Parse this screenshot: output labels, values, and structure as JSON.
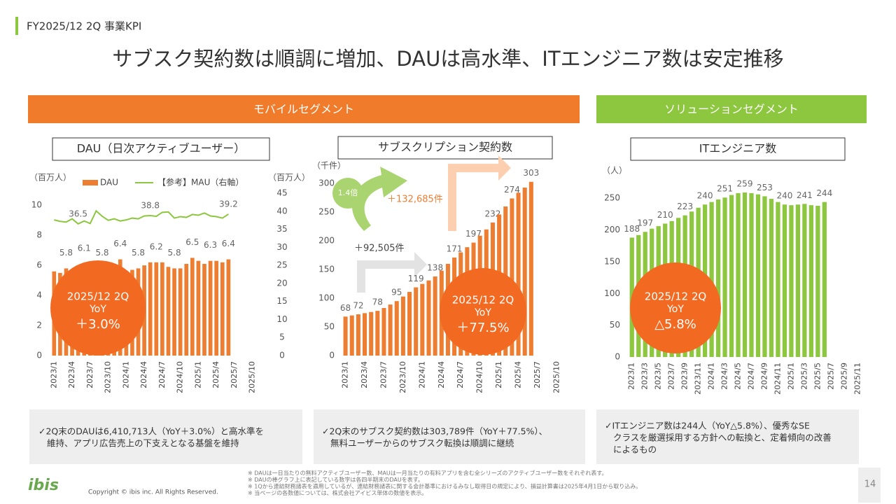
{
  "header": "FY2025/12 2Q 事業KPI",
  "title": "サブスク契約数は順調に増加、DAUは高水準、ITエンジニア数は安定推移",
  "segments": [
    "モバイルセグメント",
    "ソリューションセグメント"
  ],
  "chart_data": [
    {
      "type": "bar",
      "title": "DAU（日次アクティブユーザー）",
      "y_label": "（百万人）",
      "y2_label": "（百万人）",
      "categories": [
        "2023/1",
        null,
        null,
        "2023/4",
        null,
        null,
        "2023/7",
        null,
        null,
        "2023/10",
        null,
        null,
        "2024/1",
        null,
        null,
        "2024/4",
        null,
        null,
        "2024/7",
        null,
        null,
        "2024/10",
        null,
        null,
        "2025/1",
        null,
        null,
        "2025/4",
        null,
        null,
        "2025/7",
        null,
        null,
        "2025/10"
      ],
      "series": [
        {
          "name": "DAU",
          "type": "bar",
          "color": "#ed7d31",
          "values": [
            5.6,
            5.5,
            5.8,
            5.7,
            6.0,
            6.1,
            6.2,
            5.9,
            5.8,
            5.9,
            6.0,
            6.4,
            5.6,
            5.7,
            5.8,
            6.0,
            6.2,
            6.2,
            6.2,
            5.9,
            5.8,
            5.8,
            6.1,
            6.5,
            6.3,
            6.1,
            6.3,
            6.3,
            6.2,
            6.4,
            null,
            null,
            null,
            null
          ],
          "value_labels": [
            null,
            null,
            "5.8",
            null,
            null,
            "6.1",
            null,
            null,
            "5.8",
            null,
            null,
            "6.4",
            null,
            null,
            "5.8",
            null,
            null,
            "6.2",
            null,
            null,
            "5.8",
            null,
            null,
            "6.5",
            null,
            null,
            "6.3",
            null,
            null,
            "6.4",
            null,
            null,
            null,
            null
          ]
        },
        {
          "name": "【参考】MAU（右軸）",
          "type": "line",
          "axis": "y2",
          "color": "#8dc63f",
          "values": [
            37.6,
            37.2,
            37.0,
            37.9,
            36.5,
            37.3,
            36.6,
            40.1,
            38.6,
            37.5,
            37.9,
            37.3,
            37.6,
            38.1,
            37.9,
            38.7,
            38.8,
            38.6,
            39.7,
            39.8,
            38.1,
            38.5,
            38.3,
            39.1,
            38.9,
            39.5,
            38.7,
            38.5,
            38.1,
            39.2,
            null,
            null,
            null,
            null
          ],
          "value_labels": [
            null,
            null,
            null,
            null,
            "36.5",
            null,
            null,
            null,
            null,
            null,
            null,
            null,
            null,
            null,
            null,
            null,
            "38.8",
            null,
            null,
            null,
            null,
            null,
            null,
            null,
            null,
            null,
            null,
            null,
            null,
            "39.2",
            null,
            null,
            null,
            null
          ]
        }
      ],
      "ylim": [
        0,
        10.8
      ],
      "yticks": [
        0,
        2,
        4,
        6,
        8,
        10
      ],
      "y2lim": [
        0,
        45
      ],
      "y2ticks": [
        0,
        5,
        10,
        15,
        20,
        25,
        30,
        35,
        40,
        45
      ],
      "callout": {
        "period": "2025/12 2Q",
        "label": "YoY",
        "value": "＋3.0%"
      }
    },
    {
      "type": "bar",
      "title": "サブスクリプション契約数",
      "y_label": "（千件）",
      "categories": [
        "2023/1",
        null,
        null,
        "2023/4",
        null,
        null,
        "2023/7",
        null,
        null,
        "2023/10",
        null,
        null,
        "2024/1",
        null,
        null,
        "2024/4",
        null,
        null,
        "2024/7",
        null,
        null,
        "2024/10",
        null,
        null,
        "2025/1",
        null,
        null,
        "2025/4",
        null,
        null,
        "2025/7",
        null,
        null,
        "2025/10"
      ],
      "series": [
        {
          "name": "サブスクリプション契約数",
          "type": "bar",
          "color": "#ed7d31",
          "values": [
            68,
            70,
            72,
            74,
            76,
            78,
            83,
            89,
            95,
            103,
            111,
            119,
            125,
            131,
            138,
            148,
            160,
            171,
            180,
            189,
            197,
            209,
            220,
            232,
            246,
            260,
            274,
            284,
            293,
            303,
            null,
            null,
            null,
            null
          ],
          "value_labels": [
            "68",
            null,
            "72",
            null,
            null,
            "78",
            null,
            null,
            "95",
            null,
            null,
            "119",
            null,
            null,
            "138",
            null,
            null,
            "171",
            null,
            null,
            "197",
            null,
            null,
            "232",
            null,
            null,
            "274",
            null,
            null,
            "303",
            null,
            null,
            null,
            null
          ]
        }
      ],
      "ylim": [
        0,
        310
      ],
      "yticks": [
        0,
        50,
        100,
        150,
        200,
        250,
        300
      ],
      "annotations": [
        "1.4倍",
        "＋132,685件",
        "＋92,505件"
      ],
      "callout": {
        "period": "2025/12 2Q",
        "label": "YoY",
        "value": "＋77.5%"
      }
    },
    {
      "type": "bar",
      "title": "ITエンジニア数",
      "y_label": "（人）",
      "categories": [
        "2023/1",
        null,
        "2023/3",
        null,
        "2023/5",
        null,
        "2023/7",
        null,
        "2023/9",
        null,
        "2023/11",
        null,
        "2024/1",
        null,
        "2024/3",
        null,
        "2024/5",
        null,
        "2024/7",
        null,
        "2024/9",
        null,
        "2024/11",
        null,
        "2025/1",
        null,
        "2025/3",
        null,
        "2025/5",
        null,
        "2025/7",
        null,
        "2025/9",
        null,
        "2025/11"
      ],
      "series": [
        {
          "name": "ITエンジニア数",
          "type": "bar",
          "color": "#8dc63f",
          "values": [
            188,
            192,
            197,
            202,
            206,
            210,
            214,
            219,
            223,
            229,
            235,
            240,
            244,
            248,
            251,
            255,
            258,
            259,
            258,
            256,
            253,
            249,
            244,
            240,
            239,
            240,
            241,
            239,
            238,
            244,
            null,
            null,
            null,
            null,
            null
          ],
          "value_labels": [
            "188",
            null,
            "197",
            null,
            null,
            "210",
            null,
            null,
            "223",
            null,
            null,
            "240",
            null,
            null,
            "251",
            null,
            null,
            "259",
            null,
            null,
            "253",
            null,
            null,
            "240",
            null,
            null,
            "241",
            null,
            null,
            "244",
            null,
            null,
            null,
            null,
            null
          ]
        }
      ],
      "ylim": [
        0,
        270
      ],
      "yticks": [
        0,
        50,
        100,
        150,
        200,
        250
      ],
      "callout": {
        "period": "2025/12 2Q",
        "label": "YoY",
        "value": "△5.8%"
      }
    }
  ],
  "notes": [
    [
      "✓2Q末のDAUは6,410,713人（YoY＋3.0%）と高水準を",
      "維持、アプリ広告売上の下支えとなる基盤を維持"
    ],
    [
      "✓2Q末のサブスク契約数は303,789件（YoY＋77.5%）、",
      "無料ユーザーからのサブスク転換は順調に継続"
    ],
    [
      "✓ITエンジニア数は244人（YoY△5.8%）、優秀なSE",
      "クラスを厳選採用する方針への転換と、定着傾向の改善",
      "によるもの"
    ]
  ],
  "footnotes": [
    "※ DAUは一日当たりの無料アクティブユーザー数、MAUは一月当たりの有料アプリを含む全シリーズのアクティブユーザー数をそれぞれ表す。",
    "※ DAUの棒グラフ上に表記している数字は各四半期末のDAUを表す。",
    "※ 1Qから連結財務諸表を適用しているが、連結財務諸表に関する会計基準におけるみなし取得日の規定により、損益計算書は2025年4月1日から取り込み。",
    "※ 当ページの各数値については、株式会社アイビス単体の数値を表示。"
  ],
  "logo": "ibis",
  "copyright": "Copyright © ibis inc. All Rights Reserved.",
  "page": "14"
}
